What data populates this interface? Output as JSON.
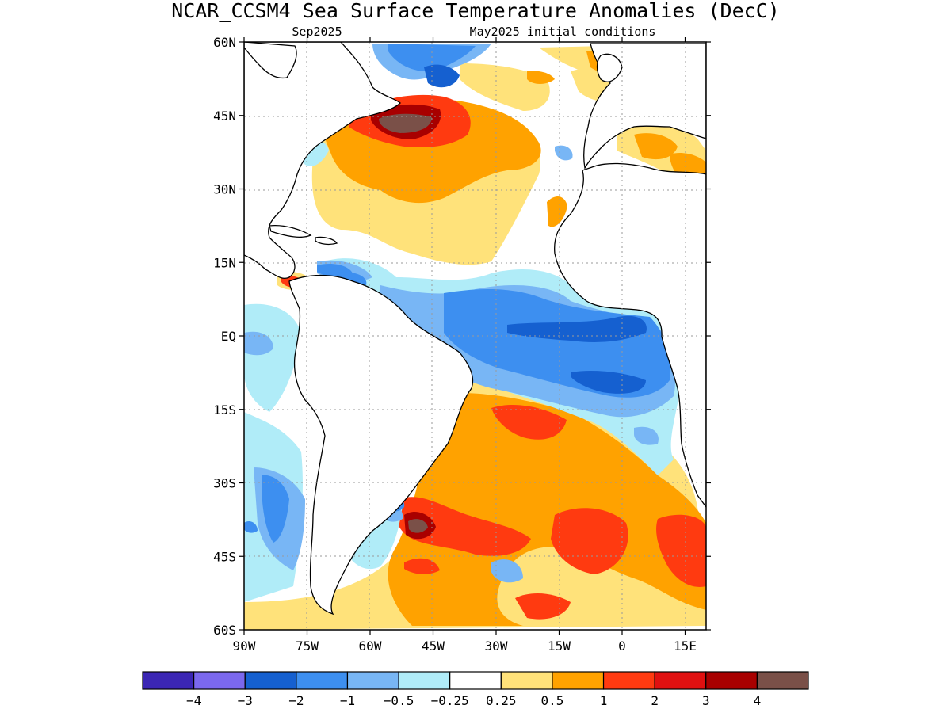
{
  "figure": {
    "title": "NCAR_CCSM4 Sea Surface Temperature Anomalies (DecC)",
    "valid_month": "Sep2025",
    "init_label": "May2025 initial conditions"
  },
  "axes": {
    "lon_min": -90,
    "lon_max": 20,
    "lat_min": -60,
    "lat_max": 60,
    "lon_ticks": [
      {
        "value": -90,
        "label": "90W"
      },
      {
        "value": -75,
        "label": "75W"
      },
      {
        "value": -60,
        "label": "60W"
      },
      {
        "value": -45,
        "label": "45W"
      },
      {
        "value": -30,
        "label": "30W"
      },
      {
        "value": -15,
        "label": "15W"
      },
      {
        "value": 0,
        "label": "0"
      },
      {
        "value": 15,
        "label": "15E"
      }
    ],
    "lat_ticks": [
      {
        "value": 60,
        "label": "60N"
      },
      {
        "value": 45,
        "label": "45N"
      },
      {
        "value": 30,
        "label": "30N"
      },
      {
        "value": 15,
        "label": "15N"
      },
      {
        "value": 0,
        "label": "EQ"
      },
      {
        "value": -15,
        "label": "15S"
      },
      {
        "value": -30,
        "label": "30S"
      },
      {
        "value": -45,
        "label": "45S"
      },
      {
        "value": -60,
        "label": "60S"
      }
    ],
    "grid": "dotted"
  },
  "colorbar": {
    "colors": [
      "#3b26b4",
      "#7b68ee",
      "#1560d0",
      "#3d8ff0",
      "#78b6f5",
      "#b0ecf8",
      "#ffffff",
      "#ffe27a",
      "#ffa200",
      "#ff3a10",
      "#e01010",
      "#a80000",
      "#7a5048"
    ],
    "labels": [
      "-4",
      "-3",
      "-2",
      "-1",
      "-0.5",
      "-0.25",
      "0.25",
      "0.5",
      "1",
      "2",
      "3",
      "4"
    ]
  },
  "anomaly_features": [
    {
      "label": "warm",
      "lon": -47,
      "lat": 44,
      "value": 4.5
    },
    {
      "label": "warm",
      "lon": -43,
      "lat": 37,
      "value": 1.0
    },
    {
      "label": "warm",
      "lon": -52,
      "lat": 28,
      "value": 0.5
    },
    {
      "label": "cool",
      "lon": -45,
      "lat": 57,
      "value": -1.5
    },
    {
      "label": "cool",
      "lon": -15,
      "lat": 1,
      "value": -1.5
    },
    {
      "label": "cool",
      "lon": 0,
      "lat": -7,
      "value": -1.5
    },
    {
      "label": "cool",
      "lon": -60,
      "lat": 10,
      "value": -1.0
    },
    {
      "label": "warm",
      "lon": -25,
      "lat": -20,
      "value": 1.0
    },
    {
      "label": "warm",
      "lon": -22,
      "lat": -15,
      "value": 2.0
    },
    {
      "label": "warm",
      "lon": -50,
      "lat": -40,
      "value": 4.5
    },
    {
      "label": "warm",
      "lon": -10,
      "lat": -42,
      "value": 2.0
    },
    {
      "label": "warm",
      "lon": 12,
      "lat": -42,
      "value": 2.0
    },
    {
      "label": "cool",
      "lon": -82,
      "lat": -35,
      "value": -1.0
    },
    {
      "label": "cool",
      "lon": -52,
      "lat": -37,
      "value": -1.0
    }
  ]
}
